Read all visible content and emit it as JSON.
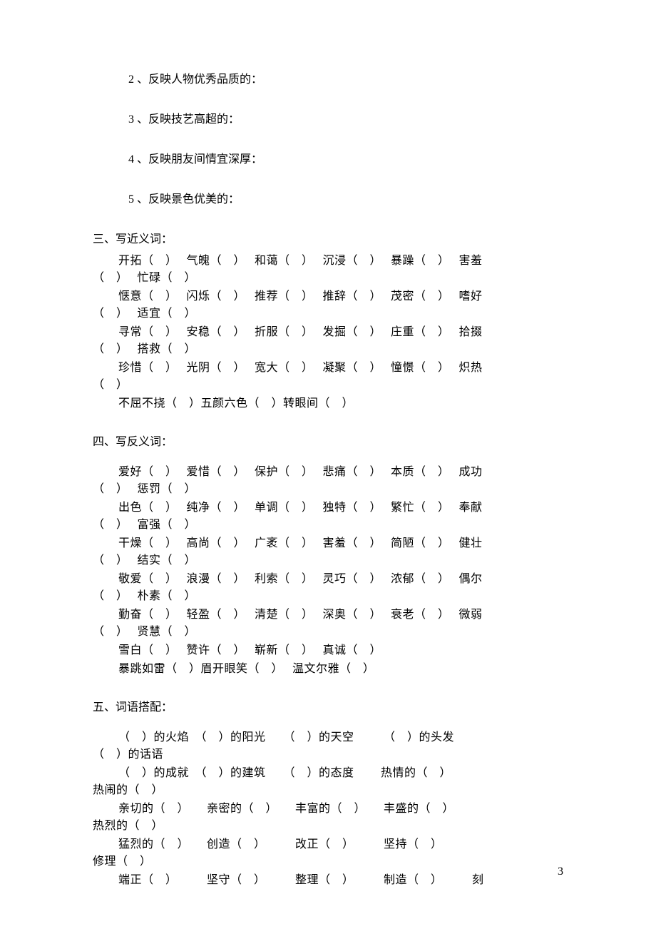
{
  "page": {
    "number": "3",
    "font_family": "SimSun",
    "font_size_pt": 12,
    "text_color": "#000000",
    "background_color": "#ffffff"
  },
  "numbered": {
    "n2": "2 、反映人物优秀品质的：",
    "n3": "3 、反映技艺高超的：",
    "n4": "4 、反映朋友间情宜深厚：",
    "n5": "5 、反映景色优美的："
  },
  "section3": {
    "heading": "三、写近义词：",
    "rows": [
      {
        "line1": "开拓（　）　 气魄（　）　 和蔼（　）　 沉浸（　）　 暴躁（　）　 害羞",
        "line2": "（　）　 忙碌（　）"
      },
      {
        "line1": "惬意（　）　 闪烁（　）　 推荐（　）　 推辞（　）　 茂密（　）　 嗜好",
        "line2": "（　）　 适宜（　）"
      },
      {
        "line1": "寻常（　）　 安稳（　）　 折服（　）　 发掘（　）　 庄重（　）　 拾掇",
        "line2": "（　）　 搭救（　）"
      },
      {
        "line1": "珍惜（　）　 光阴（　）　 宽大（　）　 凝聚（　）　 憧憬（　）　 炽热",
        "line2": "（　）"
      }
    ],
    "last": "不屈不挠（　）五颜六色（　）转眼间（　）"
  },
  "section4": {
    "heading": "四、写反义词：",
    "rows": [
      {
        "line1": "爱好（　）　 爱惜（　）　 保护（　）　 悲痛（　）　 本质（　）　 成功",
        "line2": "（　）　 惩罚（　）"
      },
      {
        "line1": "出色（　）　 纯净（　）　 单调（　）　 独特（　）　 繁忙（　）　 奉献",
        "line2": "（　）　 富强（　）"
      },
      {
        "line1": "干燥（　）　 高尚（　）　 广袤（　）　 害羞（　）　 简陋（　）　 健壮",
        "line2": "（　）　 结实（　）"
      },
      {
        "line1": "敬爱（　）　 浪漫（　）　 利索（　）　 灵巧（　）　 浓郁（　）　 偶尔",
        "line2": "（　）　 朴素（　）"
      },
      {
        "line1": "勤奋（　）　 轻盈（　）　 清楚（　）　 深奥（　）　 衰老（　）　 微弱",
        "line2": "（　）　 贤慧（　）"
      }
    ],
    "tail1": "雪白（　）　 赞许（　）　 崭新（　）　 真诚（　）",
    "tail2": "暴跳如雷（　）眉开眼笑（　）　 温文尔雅（　）"
  },
  "section5": {
    "heading": "五、词语搭配：",
    "rows": [
      {
        "line1": "（　）的火焰　（　）的阳光　　（　）的天空　　　（　）的头发",
        "line2": "（　）的话语"
      },
      {
        "line1": "（　）的成就　（　）的建筑　　（　）的态度　　 热情的（　）",
        "line2": "热闹的（　）"
      },
      {
        "line1": "亲切的（　）　　亲密的（　）　　丰富的（　）　　丰盛的（　）",
        "line2": "热烈的（　）"
      },
      {
        "line1": "猛烈的（　）　　创造（　）　　　改正（　）　　　坚持（　）",
        "line2": "修理（　）"
      }
    ],
    "last": "端正（　）　　　坚守（　）　　　整理（　）　　　制造（　）　　　刻"
  }
}
